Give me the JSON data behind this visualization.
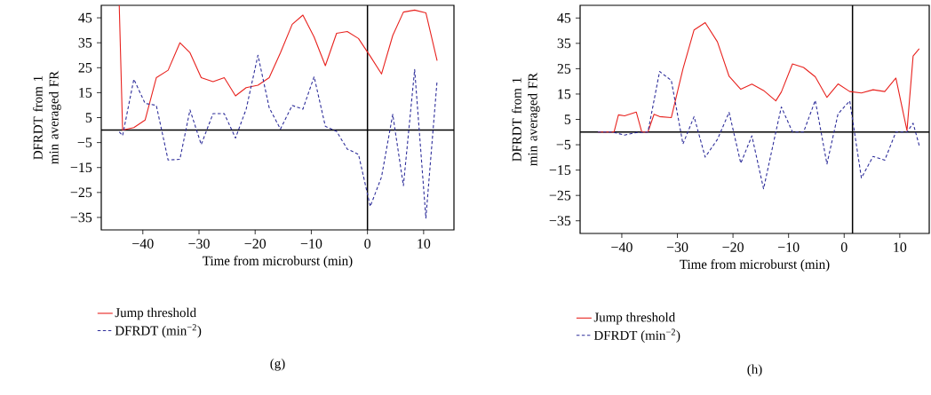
{
  "chart_data": [
    {
      "type": "line",
      "xlabel": "Time from microburst (min)",
      "ylabel": "DFRDT from 1 min averaged FR",
      "legend": "bottom",
      "grid": false,
      "annotations": [
        "(g)"
      ],
      "xlim": [
        -47.4,
        15.4
      ],
      "ylim": [
        -40,
        50
      ],
      "xticks": [
        {
          "value": -40,
          "label": "−40"
        },
        {
          "value": -30,
          "label": "−30"
        },
        {
          "value": -20,
          "label": "−20"
        },
        {
          "value": -10,
          "label": "−10"
        },
        0,
        10
      ],
      "yticks": [
        45,
        35,
        25,
        15,
        5,
        {
          "value": -5,
          "label": "−5"
        },
        {
          "value": -15,
          "label": "−15"
        },
        {
          "value": -25,
          "label": "−25"
        },
        {
          "value": -35,
          "label": "−35"
        }
      ],
      "ref_lines": [
        {
          "axis": "y",
          "value": 0,
          "color": "#000000"
        },
        {
          "axis": "x",
          "value": 0,
          "color": "#000000"
        }
      ],
      "series": [
        {
          "name": "Jump threshold",
          "color": "#e8231f",
          "line_style": "solid",
          "x": [
            -44.2,
            -43.6,
            -41.6,
            -39.6,
            -37.6,
            -35.5,
            -33.4,
            -31.6,
            -29.6,
            -27.5,
            -25.5,
            -23.5,
            -21.6,
            -19.5,
            -17.5,
            -15.5,
            -13.4,
            -11.5,
            -9.5,
            -7.5,
            -5.5,
            -3.6,
            -1.6,
            0.5,
            2.5,
            4.5,
            6.4,
            8.4,
            10.4,
            12.4
          ],
          "values": [
            50,
            0,
            1,
            4,
            21,
            24,
            35,
            31,
            21,
            19.4,
            21,
            13.7,
            17,
            18,
            21,
            31,
            42.4,
            46.1,
            37.3,
            25.8,
            38.8,
            39.5,
            36.7,
            29.6,
            22.5,
            37.9,
            47.3,
            48.1,
            47,
            27.8
          ]
        },
        {
          "name": "DFRDT (min$^{−2}$)",
          "color": "#2e2e9a",
          "line_style": "dashed",
          "x": [
            -44.2,
            -43.6,
            -41.6,
            -39.6,
            -37.6,
            -35.5,
            -33.4,
            -31.6,
            -29.6,
            -27.5,
            -25.5,
            -23.5,
            -21.6,
            -19.5,
            -17.5,
            -15.5,
            -13.4,
            -11.5,
            -9.5,
            -7.5,
            -5.5,
            -3.6,
            -1.6,
            0.5,
            2.5,
            4.5,
            6.4,
            8.4,
            10.4,
            12.4
          ],
          "values": [
            -0.7,
            -2.2,
            20.4,
            10.7,
            9.9,
            -12,
            -11.7,
            8.1,
            -5.8,
            6.6,
            6.6,
            -3.2,
            8.4,
            30,
            9,
            0.4,
            9.9,
            8.4,
            21.4,
            1.5,
            -0.5,
            -7.6,
            -9.7,
            -30.6,
            -18.8,
            6.3,
            -22.3,
            24.3,
            -35.3,
            19.9
          ]
        }
      ]
    },
    {
      "type": "line",
      "xlabel": "Time from microburst (min)",
      "ylabel": "DFRDT from 1 min averaged FR",
      "legend": "bottom",
      "grid": false,
      "annotations": [
        "(h)"
      ],
      "xlim": [
        -47.5,
        15.3
      ],
      "ylim": [
        -40,
        50
      ],
      "xticks": [
        {
          "value": -40,
          "label": "−40"
        },
        {
          "value": -30,
          "label": "−30"
        },
        {
          "value": -20,
          "label": "−20"
        },
        {
          "value": -10,
          "label": "−10"
        },
        0,
        10
      ],
      "yticks": [
        45,
        35,
        25,
        15,
        5,
        {
          "value": -5,
          "label": "−5"
        },
        {
          "value": -15,
          "label": "−15"
        },
        {
          "value": -25,
          "label": "−25"
        },
        {
          "value": -35,
          "label": "−35"
        }
      ],
      "ref_lines": [
        {
          "axis": "y",
          "value": 0,
          "color": "#000000"
        },
        {
          "axis": "x",
          "value": 1.5,
          "color": "#000000"
        }
      ],
      "series": [
        {
          "name": "Jump threshold",
          "color": "#e8231f",
          "line_style": "solid",
          "x": [
            -44.3,
            -41.4,
            -40.6,
            -39.5,
            -37.4,
            -36.4,
            -35.3,
            -34.2,
            -33.2,
            -31.1,
            -29,
            -27,
            -25,
            -22.8,
            -20.7,
            -18.6,
            -16.6,
            -14.5,
            -12.3,
            -11.3,
            -9.3,
            -7.3,
            -5.2,
            -3.1,
            -1.1,
            1,
            3.1,
            5.2,
            7.3,
            9.3,
            11.3,
            12.4,
            13.5
          ],
          "values": [
            0,
            0,
            6.8,
            6.4,
            7.9,
            0,
            0,
            7,
            6.1,
            5.7,
            24.9,
            40.3,
            43.2,
            35.6,
            22,
            16.9,
            18.9,
            16.4,
            12.3,
            15.8,
            26.9,
            25.5,
            21.8,
            13.7,
            19,
            16,
            15.4,
            16.7,
            16,
            21.3,
            0.6,
            30,
            32.9
          ]
        },
        {
          "name": "DFRDT (min$^{−2}$)",
          "color": "#2e2e9a",
          "line_style": "dashed",
          "x": [
            -44.3,
            -41.7,
            -39.5,
            -37.4,
            -35.3,
            -33.2,
            -31.1,
            -29,
            -27,
            -25,
            -22.8,
            -20.7,
            -18.6,
            -16.6,
            -14.5,
            -12.3,
            -11.3,
            -9.3,
            -7.3,
            -5.2,
            -3.1,
            -1.1,
            1,
            3.1,
            5.2,
            7.3,
            9.3,
            11.3,
            12.4,
            13.5
          ],
          "values": [
            0,
            0,
            -1.2,
            -0.2,
            0,
            23.9,
            20.4,
            -4.7,
            6.1,
            -9.9,
            -2.9,
            7.8,
            -12.3,
            -1.5,
            -22.4,
            0,
            9.9,
            0,
            0,
            12.5,
            -12.6,
            7.2,
            12.3,
            -18.1,
            -9.6,
            -11.1,
            0,
            0,
            3.5,
            -5.3
          ]
        }
      ]
    }
  ]
}
